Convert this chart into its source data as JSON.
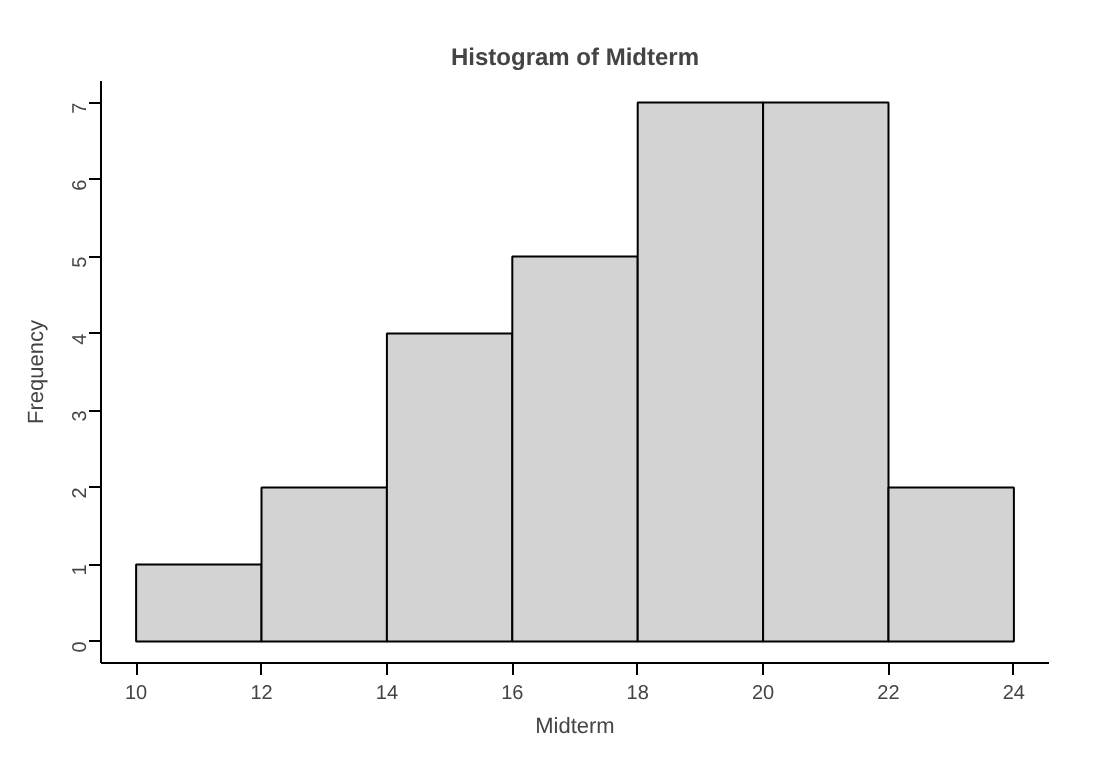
{
  "chart_data": {
    "type": "histogram",
    "title": "Histogram of Midterm",
    "xlabel": "Midterm",
    "ylabel": "Frequency",
    "bins": [
      10,
      12,
      14,
      16,
      18,
      20,
      22,
      24
    ],
    "values": [
      1,
      2,
      4,
      5,
      7,
      7,
      2
    ],
    "color": "#d3d3d3",
    "xlim": [
      9.44,
      24.56
    ],
    "ylim": [
      -0.28,
      7.28
    ],
    "xticks": [
      10,
      12,
      14,
      16,
      18,
      20,
      22,
      24
    ],
    "yticks": [
      0,
      1,
      2,
      3,
      4,
      5,
      6,
      7
    ]
  }
}
